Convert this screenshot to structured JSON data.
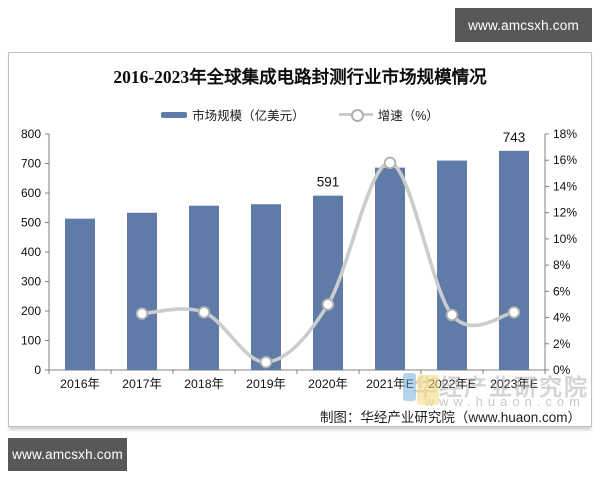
{
  "top_badge": {
    "text": "www.amcsxh.com"
  },
  "bottom_badge": {
    "text": "www.amcsxh.com"
  },
  "source": {
    "text": "制图：华经产业研究院（www.huaon.com）"
  },
  "watermark": {
    "name": "华经产业研究院",
    "url": "www.huaon.com"
  },
  "colors": {
    "bar": "#5f7ca9",
    "line": "#cccccc",
    "marker_stroke": "#b0b0b0",
    "axis": "#808080",
    "text": "#111111",
    "badge_bg": "#575859"
  },
  "chart_data": {
    "type": "bar",
    "subtype": "combo-bar-line-dual-axis",
    "title": "2016-2023年全球集成电路封测行业市场规模情况",
    "categories": [
      "2016年",
      "2017年",
      "2018年",
      "2019年",
      "2020年",
      "2021年E",
      "2022年E",
      "2023年E"
    ],
    "series": [
      {
        "name": "市场规模（亿美元）",
        "type": "bar",
        "axis": "left",
        "values": [
          513,
          533,
          557,
          562,
          591,
          686,
          710,
          743
        ],
        "point_labels": [
          null,
          null,
          null,
          null,
          "591",
          null,
          null,
          "743"
        ]
      },
      {
        "name": "增速（%）",
        "type": "line",
        "axis": "right",
        "values": [
          null,
          4.3,
          4.4,
          0.6,
          5.0,
          15.8,
          4.2,
          4.4
        ]
      }
    ],
    "left_axis": {
      "min": 0,
      "max": 800,
      "step": 100
    },
    "right_axis": {
      "min": 0,
      "max": 18,
      "step": 2,
      "suffix": "%"
    },
    "legend_position": "top-center",
    "grid": false
  }
}
